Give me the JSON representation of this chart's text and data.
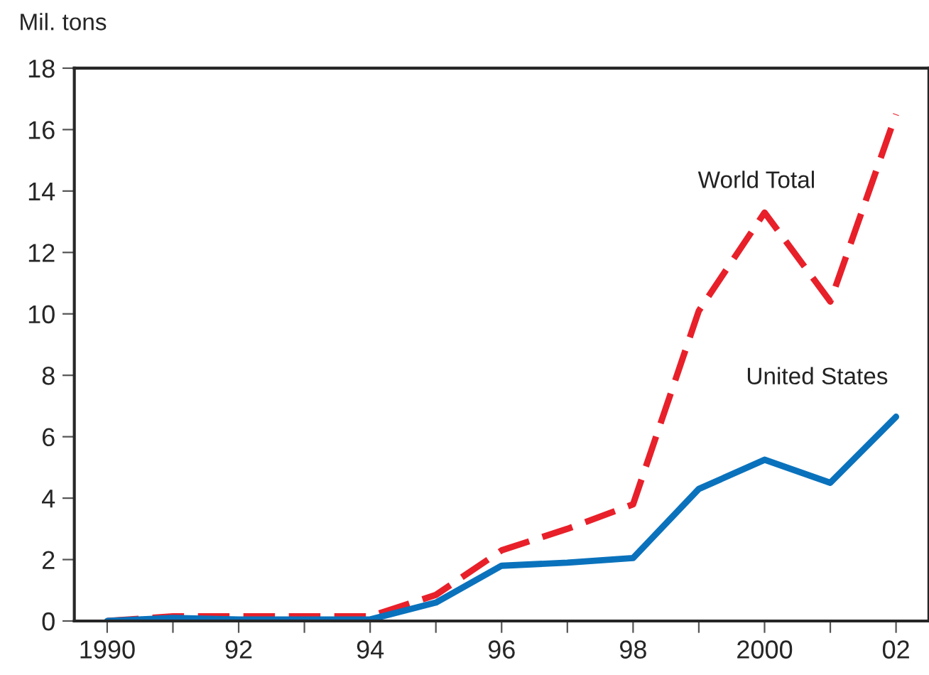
{
  "chart_data": {
    "type": "line",
    "ylabel": "Mil. tons",
    "x": [
      1990,
      1991,
      1992,
      1993,
      1994,
      1995,
      1996,
      1997,
      1998,
      1999,
      2000,
      2001,
      2002
    ],
    "series": [
      {
        "name": "World Total",
        "color": "#e8202a",
        "line_style": "dashed",
        "values": [
          0,
          0.15,
          0.15,
          0.15,
          0.15,
          0.85,
          2.3,
          3.0,
          3.8,
          10.1,
          13.3,
          10.4,
          16.5
        ]
      },
      {
        "name": "United States",
        "color": "#0a72bc",
        "line_style": "solid",
        "values": [
          0,
          0.1,
          0.05,
          0.05,
          0.05,
          0.6,
          1.8,
          1.9,
          2.05,
          4.3,
          5.25,
          4.5,
          6.65
        ]
      }
    ],
    "xlim": [
      1989.5,
      2002.5
    ],
    "xticks": [
      {
        "value": 1990,
        "label": "1990"
      },
      {
        "value": 1991,
        "label": null
      },
      {
        "value": 1992,
        "label": "92"
      },
      {
        "value": 1993,
        "label": null
      },
      {
        "value": 1994,
        "label": "94"
      },
      {
        "value": 1995,
        "label": null
      },
      {
        "value": 1996,
        "label": "96"
      },
      {
        "value": 1997,
        "label": null
      },
      {
        "value": 1998,
        "label": "98"
      },
      {
        "value": 1999,
        "label": null
      },
      {
        "value": 2000,
        "label": "2000"
      },
      {
        "value": 2001,
        "label": null
      },
      {
        "value": 2002,
        "label": "02"
      }
    ],
    "ylim": [
      0,
      18
    ],
    "yticks": [
      0,
      2,
      4,
      6,
      8,
      10,
      12,
      14,
      16,
      18
    ],
    "grid": false,
    "legend": false,
    "marker": "none"
  }
}
